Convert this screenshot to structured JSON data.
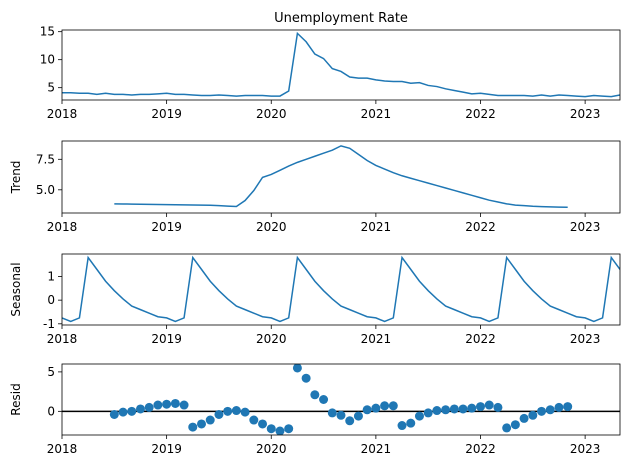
{
  "chart_data": [
    {
      "type": "line",
      "title": "Unemployment Rate",
      "color": "#1f77b4",
      "x": [
        "2018-01",
        "2018-02",
        "2018-03",
        "2018-04",
        "2018-05",
        "2018-06",
        "2018-07",
        "2018-08",
        "2018-09",
        "2018-10",
        "2018-11",
        "2018-12",
        "2019-01",
        "2019-02",
        "2019-03",
        "2019-04",
        "2019-05",
        "2019-06",
        "2019-07",
        "2019-08",
        "2019-09",
        "2019-10",
        "2019-11",
        "2019-12",
        "2020-01",
        "2020-02",
        "2020-03",
        "2020-04",
        "2020-05",
        "2020-06",
        "2020-07",
        "2020-08",
        "2020-09",
        "2020-10",
        "2020-11",
        "2020-12",
        "2021-01",
        "2021-02",
        "2021-03",
        "2021-04",
        "2021-05",
        "2021-06",
        "2021-07",
        "2021-08",
        "2021-09",
        "2021-10",
        "2021-11",
        "2021-12",
        "2022-01",
        "2022-02",
        "2022-03",
        "2022-04",
        "2022-05",
        "2022-06",
        "2022-07",
        "2022-08",
        "2022-09",
        "2022-10",
        "2022-11",
        "2022-12",
        "2023-01",
        "2023-02",
        "2023-03",
        "2023-04",
        "2023-05"
      ],
      "values": [
        4.1,
        4.1,
        4.0,
        4.0,
        3.8,
        4.0,
        3.8,
        3.8,
        3.7,
        3.8,
        3.8,
        3.9,
        4.0,
        3.8,
        3.8,
        3.7,
        3.6,
        3.6,
        3.7,
        3.6,
        3.5,
        3.6,
        3.6,
        3.6,
        3.5,
        3.5,
        4.4,
        14.7,
        13.2,
        11.0,
        10.2,
        8.4,
        7.9,
        6.9,
        6.7,
        6.7,
        6.4,
        6.2,
        6.1,
        6.1,
        5.8,
        5.9,
        5.4,
        5.2,
        4.8,
        4.5,
        4.2,
        3.9,
        4.0,
        3.8,
        3.6,
        3.6,
        3.6,
        3.6,
        3.5,
        3.7,
        3.5,
        3.7,
        3.6,
        3.5,
        3.4,
        3.6,
        3.5,
        3.4,
        3.7
      ],
      "xlim": [
        "2018-01",
        "2023-05"
      ],
      "xticks": [
        {
          "value": "2018-01",
          "label": "2018"
        },
        {
          "value": "2019-01",
          "label": "2019"
        },
        {
          "value": "2020-01",
          "label": "2020"
        },
        {
          "value": "2021-01",
          "label": "2021"
        },
        {
          "value": "2022-01",
          "label": "2022"
        },
        {
          "value": "2023-01",
          "label": "2023"
        }
      ],
      "ylim": [
        2.8,
        15.3
      ],
      "yticks": [
        5,
        10,
        15
      ]
    },
    {
      "type": "line",
      "ylabel": "Trend",
      "color": "#1f77b4",
      "x": [
        "2018-01",
        "2018-02",
        "2018-03",
        "2018-04",
        "2018-05",
        "2018-06",
        "2018-07",
        "2018-08",
        "2018-09",
        "2018-10",
        "2018-11",
        "2018-12",
        "2019-01",
        "2019-02",
        "2019-03",
        "2019-04",
        "2019-05",
        "2019-06",
        "2019-07",
        "2019-08",
        "2019-09",
        "2019-10",
        "2019-11",
        "2019-12",
        "2020-01",
        "2020-02",
        "2020-03",
        "2020-04",
        "2020-05",
        "2020-06",
        "2020-07",
        "2020-08",
        "2020-09",
        "2020-10",
        "2020-11",
        "2020-12",
        "2021-01",
        "2021-02",
        "2021-03",
        "2021-04",
        "2021-05",
        "2021-06",
        "2021-07",
        "2021-08",
        "2021-09",
        "2021-10",
        "2021-11",
        "2021-12",
        "2022-01",
        "2022-02",
        "2022-03",
        "2022-04",
        "2022-05",
        "2022-06",
        "2022-07",
        "2022-08",
        "2022-09",
        "2022-10",
        "2022-11",
        "2022-12",
        "2023-01",
        "2023-02",
        "2023-03",
        "2023-04",
        "2023-05"
      ],
      "values": [
        null,
        null,
        null,
        null,
        null,
        null,
        3.85,
        3.84,
        3.83,
        3.82,
        3.81,
        3.8,
        3.79,
        3.78,
        3.77,
        3.76,
        3.75,
        3.73,
        3.7,
        3.66,
        3.63,
        4.12,
        4.94,
        6.02,
        6.26,
        6.6,
        6.95,
        7.25,
        7.5,
        7.75,
        8.0,
        8.25,
        8.6,
        8.4,
        7.9,
        7.4,
        7.0,
        6.7,
        6.4,
        6.15,
        5.95,
        5.75,
        5.55,
        5.35,
        5.15,
        4.95,
        4.75,
        4.55,
        4.35,
        4.15,
        4.0,
        3.85,
        3.75,
        3.7,
        3.65,
        3.62,
        3.6,
        3.58,
        3.57,
        null,
        null,
        null,
        null,
        null,
        null
      ],
      "xlim": [
        "2018-01",
        "2023-05"
      ],
      "xticks": [
        {
          "value": "2018-01",
          "label": "2018"
        },
        {
          "value": "2019-01",
          "label": "2019"
        },
        {
          "value": "2020-01",
          "label": "2020"
        },
        {
          "value": "2021-01",
          "label": "2021"
        },
        {
          "value": "2022-01",
          "label": "2022"
        },
        {
          "value": "2023-01",
          "label": "2023"
        }
      ],
      "ylim": [
        3.1,
        9.0
      ],
      "yticks": [
        {
          "value": 5,
          "label": "5.0"
        },
        {
          "value": 7.5,
          "label": "7.5"
        }
      ]
    },
    {
      "type": "line",
      "ylabel": "Seasonal",
      "color": "#1f77b4",
      "x": [
        "2018-01",
        "2018-02",
        "2018-03",
        "2018-04",
        "2018-05",
        "2018-06",
        "2018-07",
        "2018-08",
        "2018-09",
        "2018-10",
        "2018-11",
        "2018-12",
        "2019-01",
        "2019-02",
        "2019-03",
        "2019-04",
        "2019-05",
        "2019-06",
        "2019-07",
        "2019-08",
        "2019-09",
        "2019-10",
        "2019-11",
        "2019-12",
        "2020-01",
        "2020-02",
        "2020-03",
        "2020-04",
        "2020-05",
        "2020-06",
        "2020-07",
        "2020-08",
        "2020-09",
        "2020-10",
        "2020-11",
        "2020-12",
        "2021-01",
        "2021-02",
        "2021-03",
        "2021-04",
        "2021-05",
        "2021-06",
        "2021-07",
        "2021-08",
        "2021-09",
        "2021-10",
        "2021-11",
        "2021-12",
        "2022-01",
        "2022-02",
        "2022-03",
        "2022-04",
        "2022-05",
        "2022-06",
        "2022-07",
        "2022-08",
        "2022-09",
        "2022-10",
        "2022-11",
        "2022-12",
        "2023-01",
        "2023-02",
        "2023-03",
        "2023-04",
        "2023-05"
      ],
      "values": [
        -0.75,
        -0.9,
        -0.75,
        1.8,
        1.3,
        0.8,
        0.4,
        0.05,
        -0.25,
        -0.4,
        -0.55,
        -0.7,
        -0.75,
        -0.9,
        -0.75,
        1.8,
        1.3,
        0.8,
        0.4,
        0.05,
        -0.25,
        -0.4,
        -0.55,
        -0.7,
        -0.75,
        -0.9,
        -0.75,
        1.8,
        1.3,
        0.8,
        0.4,
        0.05,
        -0.25,
        -0.4,
        -0.55,
        -0.7,
        -0.75,
        -0.9,
        -0.75,
        1.8,
        1.3,
        0.8,
        0.4,
        0.05,
        -0.25,
        -0.4,
        -0.55,
        -0.7,
        -0.75,
        -0.9,
        -0.75,
        1.8,
        1.3,
        0.8,
        0.4,
        0.05,
        -0.25,
        -0.4,
        -0.55,
        -0.7,
        -0.75,
        -0.9,
        -0.75,
        1.8,
        1.3
      ],
      "xlim": [
        "2018-01",
        "2023-05"
      ],
      "xticks": [
        {
          "value": "2018-01",
          "label": "2018"
        },
        {
          "value": "2019-01",
          "label": "2019"
        },
        {
          "value": "2020-01",
          "label": "2020"
        },
        {
          "value": "2021-01",
          "label": "2021"
        },
        {
          "value": "2022-01",
          "label": "2022"
        },
        {
          "value": "2023-01",
          "label": "2023"
        }
      ],
      "ylim": [
        -1.05,
        1.95
      ],
      "yticks": [
        -1,
        0,
        1
      ]
    },
    {
      "type": "scatter",
      "ylabel": "Resid",
      "color": "#1f77b4",
      "x": [
        "2018-01",
        "2018-02",
        "2018-03",
        "2018-04",
        "2018-05",
        "2018-06",
        "2018-07",
        "2018-08",
        "2018-09",
        "2018-10",
        "2018-11",
        "2018-12",
        "2019-01",
        "2019-02",
        "2019-03",
        "2019-04",
        "2019-05",
        "2019-06",
        "2019-07",
        "2019-08",
        "2019-09",
        "2019-10",
        "2019-11",
        "2019-12",
        "2020-01",
        "2020-02",
        "2020-03",
        "2020-04",
        "2020-05",
        "2020-06",
        "2020-07",
        "2020-08",
        "2020-09",
        "2020-10",
        "2020-11",
        "2020-12",
        "2021-01",
        "2021-02",
        "2021-03",
        "2021-04",
        "2021-05",
        "2021-06",
        "2021-07",
        "2021-08",
        "2021-09",
        "2021-10",
        "2021-11",
        "2021-12",
        "2022-01",
        "2022-02",
        "2022-03",
        "2022-04",
        "2022-05",
        "2022-06",
        "2022-07",
        "2022-08",
        "2022-09",
        "2022-10",
        "2022-11",
        "2022-12",
        "2023-01",
        "2023-02",
        "2023-03",
        "2023-04",
        "2023-05"
      ],
      "values": [
        null,
        null,
        null,
        null,
        null,
        null,
        -0.4,
        -0.1,
        0.0,
        0.3,
        0.5,
        0.8,
        0.9,
        1.0,
        0.8,
        -2.0,
        -1.6,
        -1.1,
        -0.4,
        0.0,
        0.1,
        -0.1,
        -1.1,
        -1.6,
        -2.2,
        -2.5,
        -2.2,
        5.5,
        4.2,
        2.1,
        1.5,
        -0.2,
        -0.5,
        -1.2,
        -0.6,
        0.2,
        0.4,
        0.7,
        0.7,
        -1.8,
        -1.5,
        -0.6,
        -0.2,
        0.1,
        0.2,
        0.3,
        0.3,
        0.4,
        0.6,
        0.8,
        0.5,
        -2.1,
        -1.7,
        -0.9,
        -0.5,
        0.0,
        0.2,
        0.5,
        0.6,
        null,
        null,
        null,
        null,
        null,
        null
      ],
      "xlim": [
        "2018-01",
        "2023-05"
      ],
      "xticks": [
        {
          "value": "2018-01",
          "label": "2018"
        },
        {
          "value": "2019-01",
          "label": "2019"
        },
        {
          "value": "2020-01",
          "label": "2020"
        },
        {
          "value": "2021-01",
          "label": "2021"
        },
        {
          "value": "2022-01",
          "label": "2022"
        },
        {
          "value": "2023-01",
          "label": "2023"
        }
      ],
      "ylim": [
        -3.0,
        6.0
      ],
      "yticks": [
        0,
        5
      ]
    }
  ]
}
